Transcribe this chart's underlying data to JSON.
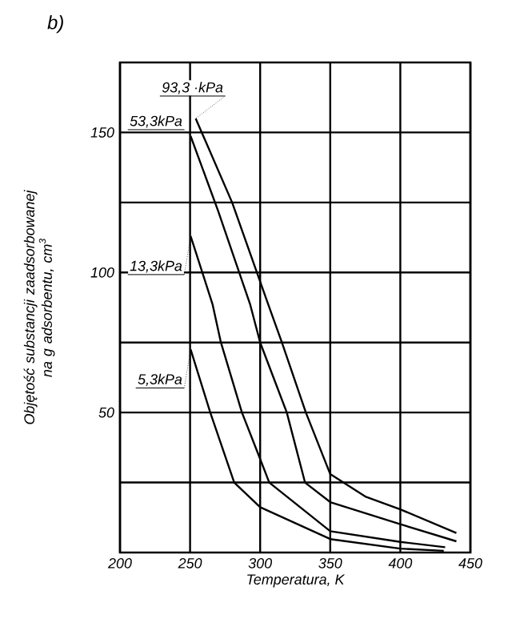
{
  "chart_data": {
    "type": "line",
    "title": "b)",
    "xlabel": "Temperatura, K",
    "ylabel": "Objętość substancji zaadsorbowanej na g adsorbentu, cm$^{3}$",
    "xlim": [
      200,
      450
    ],
    "xticks": [
      200,
      250,
      300,
      350,
      400,
      450
    ],
    "ylim": [
      0,
      175
    ],
    "yticks": [
      {
        "value": 25,
        "label": null
      },
      50,
      {
        "value": 75,
        "label": null
      },
      100,
      {
        "value": 125,
        "label": null
      },
      150
    ],
    "grid": true,
    "legend": false,
    "marker": "none",
    "line_style": "solid",
    "series": [
      {
        "name": "93,3 ·kPa",
        "color": "#000000",
        "x": [
          254,
          280,
          305.7,
          315.5,
          332.6,
          350,
          375,
          400,
          440
        ],
        "values": [
          155,
          125,
          88.7,
          75,
          50,
          28,
          20,
          15.4,
          7
        ]
      },
      {
        "name": "53,3kPa",
        "color": "#000000",
        "x": [
          250.4,
          270,
          292.8,
          300,
          319,
          332,
          350,
          400,
          440
        ],
        "values": [
          148.7,
          122,
          88.7,
          75,
          50,
          25,
          18,
          10.1,
          4
        ]
      },
      {
        "name": "13,3kPa",
        "color": "#000000",
        "x": [
          250.4,
          266,
          272,
          287,
          300,
          306.5,
          350,
          400,
          432
        ],
        "values": [
          113,
          88.7,
          75,
          50,
          33.4,
          25,
          7.6,
          3.8,
          1.9
        ]
      },
      {
        "name": "5,3kPa",
        "color": "#000000",
        "x": [
          250.4,
          264.4,
          281.5,
          300,
          350,
          400,
          431
        ],
        "values": [
          72.5,
          50,
          25,
          16.2,
          4.8,
          1.4,
          0.6
        ]
      }
    ]
  }
}
